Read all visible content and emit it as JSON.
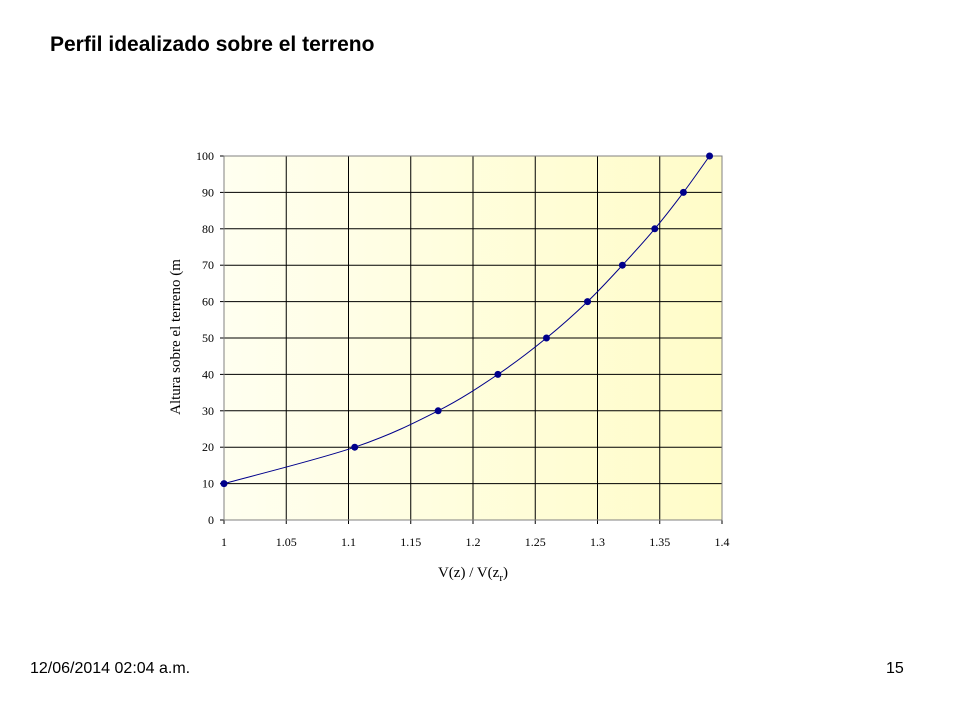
{
  "slide": {
    "title": "Perfil idealizado sobre el terreno",
    "date": "12/06/2014 02:04 a.m.",
    "page_number": "15"
  },
  "chart_data": {
    "type": "scatter",
    "title": "",
    "xlabel": "V(z) / V(z",
    "xlabel_subscript": "r",
    "xlabel_suffix": ")",
    "ylabel": "Altura sobre el terreno (m",
    "xlim": [
      1,
      1.4
    ],
    "ylim": [
      0,
      100
    ],
    "x_ticks": [
      1,
      1.05,
      1.1,
      1.15,
      1.2,
      1.25,
      1.3,
      1.35,
      1.4
    ],
    "x_tick_labels": [
      "1",
      "1.05",
      "1.1",
      "1.15",
      "1.2",
      "1.25",
      "1.3",
      "1.35",
      "1.4"
    ],
    "y_ticks": [
      0,
      10,
      20,
      30,
      40,
      50,
      60,
      70,
      80,
      90,
      100
    ],
    "y_tick_labels": [
      "0",
      "10",
      "20",
      "30",
      "40",
      "50",
      "60",
      "70",
      "80",
      "90",
      "100"
    ],
    "grid": true,
    "legend": "none",
    "smooth_line": true,
    "series": [
      {
        "x": [
          1.0,
          1.105,
          1.172,
          1.22,
          1.259,
          1.292,
          1.32,
          1.346,
          1.369,
          1.39
        ],
        "y": [
          10,
          20,
          30,
          40,
          50,
          60,
          70,
          80,
          90,
          100
        ],
        "marker_color": "#00008B",
        "line_color": "#00008B"
      }
    ],
    "plot_background": [
      "#FFFFF0",
      "#FFFCC8"
    ],
    "grid_color": "#000000"
  }
}
